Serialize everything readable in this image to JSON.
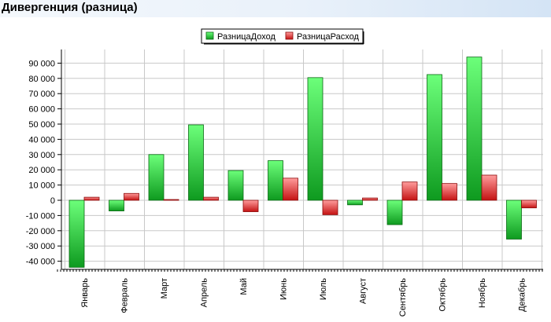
{
  "page": {
    "title": "Дивергенция (разница)"
  },
  "colors": {
    "income_light": "#6cff7a",
    "income_dark": "#0e9a1f",
    "expense_light": "#ff9c9c",
    "expense_dark": "#c41212",
    "grid": "#c8c8c8",
    "axis": "#000000"
  },
  "chart_data": {
    "type": "bar",
    "title": "",
    "xlabel": "",
    "ylabel": "",
    "categories": [
      "Январь",
      "Февраль",
      "Март",
      "Апрель",
      "Май",
      "Июнь",
      "Июль",
      "Август",
      "Сентябрь",
      "Октябрь",
      "Ноябрь",
      "Декабрь"
    ],
    "series": [
      {
        "name": "РазницаДоход",
        "values": [
          -44000,
          -7000,
          30000,
          49500,
          19500,
          26000,
          80500,
          -3000,
          -16000,
          82500,
          94000,
          -25500
        ]
      },
      {
        "name": "РазницаРасход",
        "values": [
          2000,
          4500,
          500,
          2000,
          -7500,
          14500,
          -9500,
          1500,
          12000,
          11000,
          16500,
          -5000
        ]
      }
    ],
    "y_ticks": [
      "90 000",
      "80 000",
      "70 000",
      "60 000",
      "50 000",
      "40 000",
      "30 000",
      "20 000",
      "10 000",
      "0",
      "-10 000",
      "-20 000",
      "-30 000",
      "-40 000"
    ],
    "ylim": [
      -45000,
      95000
    ],
    "grid": true,
    "legend_position": "top-center"
  }
}
